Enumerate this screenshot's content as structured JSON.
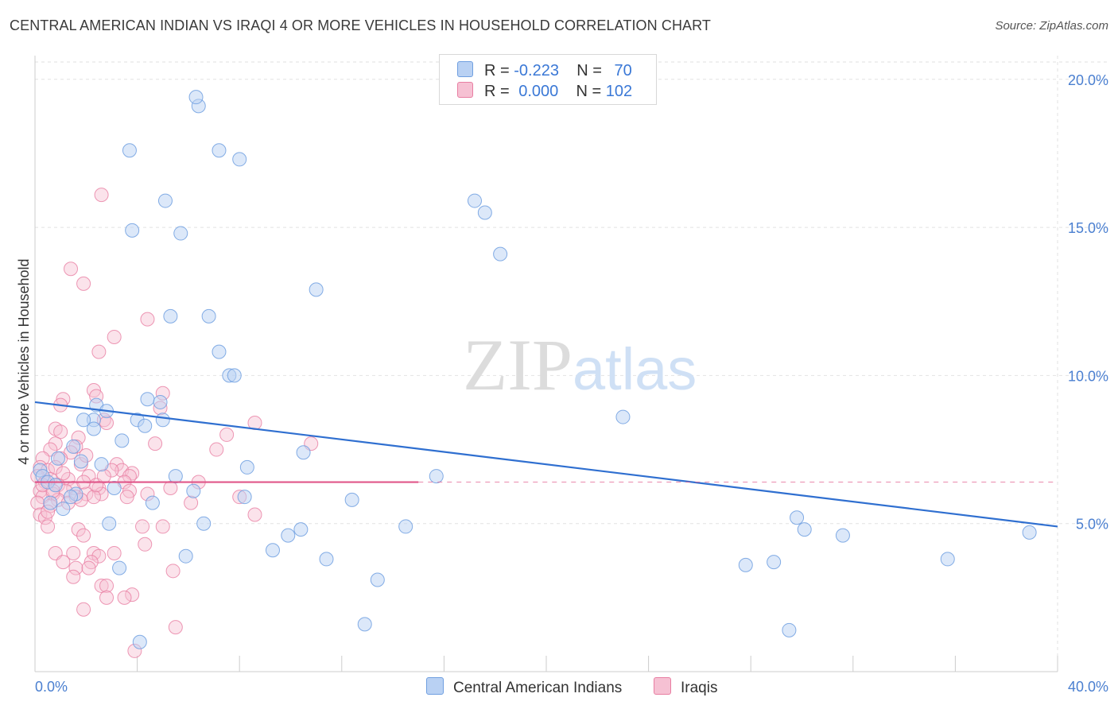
{
  "title": "CENTRAL AMERICAN INDIAN VS IRAQI 4 OR MORE VEHICLES IN HOUSEHOLD CORRELATION CHART",
  "source": "Source: ZipAtlas.com",
  "watermark": {
    "zip": "ZIP",
    "atlas": "atlas"
  },
  "colors": {
    "blue": "#6f9fe0",
    "blue_fill": "#b9d1f3",
    "blue_line": "#2f6fd0",
    "pink": "#e87ea2",
    "pink_fill": "#f6c1d3",
    "pink_line": "#e0578a"
  },
  "legend": {
    "series1": {
      "r_label": "R =",
      "r_value": "-0.223",
      "n_label": "N =",
      "n_value": "70"
    },
    "series2": {
      "r_label": "R =",
      "r_value": "0.000",
      "n_label": "N =",
      "n_value": "102"
    }
  },
  "bottom_legend": [
    "Central American Indians",
    "Iraqis"
  ],
  "chart_data": {
    "type": "scatter",
    "title": "CENTRAL AMERICAN INDIAN VS IRAQI 4 OR MORE VEHICLES IN HOUSEHOLD CORRELATION CHART",
    "xlabel": "",
    "ylabel": "4 or more Vehicles in Household",
    "xlim": [
      0,
      40
    ],
    "ylim": [
      0,
      20.8
    ],
    "x_tick_labels": [
      "0.0%",
      "40.0%"
    ],
    "y_ticks": [
      5,
      10,
      15,
      20
    ],
    "y_tick_labels": [
      "5.0%",
      "10.0%",
      "15.0%",
      "20.0%"
    ],
    "grid": true,
    "legend_position": "top-center",
    "series": [
      {
        "name": "Central American Indians",
        "r": -0.223,
        "n": 70,
        "trend": {
          "x0": 0,
          "y0": 9.1,
          "x1": 40,
          "y1": 4.9
        },
        "points": [
          [
            6.4,
            19.1
          ],
          [
            6.3,
            19.4
          ],
          [
            3.7,
            17.6
          ],
          [
            7.2,
            17.6
          ],
          [
            8.0,
            17.3
          ],
          [
            5.1,
            15.9
          ],
          [
            3.8,
            14.9
          ],
          [
            5.7,
            14.8
          ],
          [
            17.2,
            15.9
          ],
          [
            17.6,
            15.5
          ],
          [
            18.2,
            14.1
          ],
          [
            11.0,
            12.9
          ],
          [
            5.3,
            12.0
          ],
          [
            6.8,
            12.0
          ],
          [
            7.2,
            10.8
          ],
          [
            7.6,
            10.0
          ],
          [
            7.8,
            10.0
          ],
          [
            4.4,
            9.2
          ],
          [
            4.9,
            9.1
          ],
          [
            2.4,
            9.0
          ],
          [
            2.8,
            8.8
          ],
          [
            2.3,
            8.5
          ],
          [
            1.9,
            8.5
          ],
          [
            4.0,
            8.5
          ],
          [
            4.3,
            8.3
          ],
          [
            5.0,
            8.5
          ],
          [
            2.3,
            8.2
          ],
          [
            3.4,
            7.8
          ],
          [
            1.5,
            7.6
          ],
          [
            10.5,
            7.4
          ],
          [
            23.0,
            8.6
          ],
          [
            1.8,
            7.1
          ],
          [
            2.6,
            7.0
          ],
          [
            0.9,
            7.2
          ],
          [
            8.3,
            6.9
          ],
          [
            15.7,
            6.6
          ],
          [
            0.2,
            6.8
          ],
          [
            0.3,
            6.6
          ],
          [
            0.5,
            6.4
          ],
          [
            0.8,
            6.3
          ],
          [
            1.6,
            6.0
          ],
          [
            5.5,
            6.6
          ],
          [
            3.1,
            6.2
          ],
          [
            6.2,
            6.1
          ],
          [
            8.2,
            5.9
          ],
          [
            0.6,
            5.7
          ],
          [
            1.1,
            5.5
          ],
          [
            1.4,
            5.9
          ],
          [
            4.6,
            5.7
          ],
          [
            12.4,
            5.8
          ],
          [
            2.9,
            5.0
          ],
          [
            6.6,
            5.0
          ],
          [
            10.4,
            4.8
          ],
          [
            9.9,
            4.6
          ],
          [
            14.5,
            4.9
          ],
          [
            29.8,
            5.2
          ],
          [
            30.1,
            4.8
          ],
          [
            31.6,
            4.6
          ],
          [
            38.9,
            4.7
          ],
          [
            9.3,
            4.1
          ],
          [
            11.4,
            3.8
          ],
          [
            5.9,
            3.9
          ],
          [
            3.3,
            3.5
          ],
          [
            27.8,
            3.6
          ],
          [
            28.9,
            3.7
          ],
          [
            35.7,
            3.8
          ],
          [
            13.4,
            3.1
          ],
          [
            12.9,
            1.6
          ],
          [
            4.1,
            1.0
          ],
          [
            29.5,
            1.4
          ]
        ]
      },
      {
        "name": "Iraqis",
        "r": 0.0,
        "n": 102,
        "trend": {
          "x0": 0,
          "y0": 6.4,
          "x1": 15.0,
          "y1": 6.4
        },
        "dashed_extension": {
          "x0": 15.0,
          "x1": 40,
          "y": 6.4
        },
        "points": [
          [
            2.6,
            16.1
          ],
          [
            1.4,
            13.6
          ],
          [
            1.9,
            13.1
          ],
          [
            4.4,
            11.9
          ],
          [
            3.1,
            11.3
          ],
          [
            2.5,
            10.8
          ],
          [
            2.3,
            9.5
          ],
          [
            2.4,
            9.3
          ],
          [
            5.0,
            9.4
          ],
          [
            1.1,
            9.2
          ],
          [
            1.0,
            9.0
          ],
          [
            4.9,
            8.9
          ],
          [
            2.7,
            8.5
          ],
          [
            2.8,
            8.4
          ],
          [
            8.6,
            8.4
          ],
          [
            0.8,
            8.2
          ],
          [
            1.0,
            8.1
          ],
          [
            7.5,
            8.0
          ],
          [
            1.7,
            7.9
          ],
          [
            0.8,
            7.7
          ],
          [
            1.6,
            7.6
          ],
          [
            4.7,
            7.7
          ],
          [
            10.8,
            7.7
          ],
          [
            0.6,
            7.5
          ],
          [
            1.4,
            7.4
          ],
          [
            7.1,
            7.5
          ],
          [
            0.3,
            7.2
          ],
          [
            1.0,
            7.2
          ],
          [
            1.8,
            7.0
          ],
          [
            3.2,
            7.0
          ],
          [
            0.2,
            6.9
          ],
          [
            0.5,
            6.8
          ],
          [
            3.4,
            6.8
          ],
          [
            3.8,
            6.7
          ],
          [
            0.1,
            6.6
          ],
          [
            0.6,
            6.5
          ],
          [
            1.3,
            6.5
          ],
          [
            2.1,
            6.6
          ],
          [
            3.7,
            6.6
          ],
          [
            0.4,
            6.4
          ],
          [
            0.9,
            6.3
          ],
          [
            1.5,
            6.2
          ],
          [
            2.5,
            6.2
          ],
          [
            3.5,
            6.4
          ],
          [
            6.4,
            6.4
          ],
          [
            0.2,
            6.1
          ],
          [
            0.7,
            6.0
          ],
          [
            1.2,
            6.1
          ],
          [
            2.0,
            6.0
          ],
          [
            2.6,
            6.0
          ],
          [
            3.7,
            6.1
          ],
          [
            5.3,
            6.2
          ],
          [
            0.3,
            5.9
          ],
          [
            0.9,
            5.8
          ],
          [
            1.6,
            5.9
          ],
          [
            2.3,
            5.9
          ],
          [
            3.6,
            5.9
          ],
          [
            8.0,
            5.9
          ],
          [
            0.1,
            5.7
          ],
          [
            0.6,
            5.6
          ],
          [
            1.8,
            5.8
          ],
          [
            6.1,
            5.7
          ],
          [
            0.2,
            5.3
          ],
          [
            0.4,
            5.2
          ],
          [
            8.6,
            5.3
          ],
          [
            4.2,
            4.9
          ],
          [
            5.0,
            4.9
          ],
          [
            0.5,
            4.9
          ],
          [
            1.7,
            4.8
          ],
          [
            1.9,
            4.6
          ],
          [
            4.3,
            4.3
          ],
          [
            0.8,
            4.0
          ],
          [
            1.5,
            4.0
          ],
          [
            2.3,
            4.0
          ],
          [
            2.5,
            3.9
          ],
          [
            3.1,
            4.0
          ],
          [
            2.2,
            3.7
          ],
          [
            1.1,
            3.7
          ],
          [
            1.6,
            3.5
          ],
          [
            2.1,
            3.5
          ],
          [
            5.4,
            3.4
          ],
          [
            1.5,
            3.2
          ],
          [
            2.6,
            2.9
          ],
          [
            2.8,
            2.9
          ],
          [
            3.8,
            2.6
          ],
          [
            2.8,
            2.5
          ],
          [
            3.5,
            2.5
          ],
          [
            1.9,
            2.1
          ],
          [
            5.5,
            1.5
          ],
          [
            3.9,
            0.7
          ],
          [
            3.0,
            6.8
          ],
          [
            2.4,
            6.3
          ],
          [
            1.3,
            5.7
          ],
          [
            0.8,
            6.9
          ],
          [
            1.1,
            6.7
          ],
          [
            2.0,
            7.3
          ],
          [
            4.4,
            6.0
          ],
          [
            0.5,
            5.4
          ],
          [
            0.3,
            6.3
          ],
          [
            1.9,
            6.4
          ],
          [
            2.7,
            6.6
          ],
          [
            0.7,
            6.1
          ]
        ]
      }
    ]
  }
}
